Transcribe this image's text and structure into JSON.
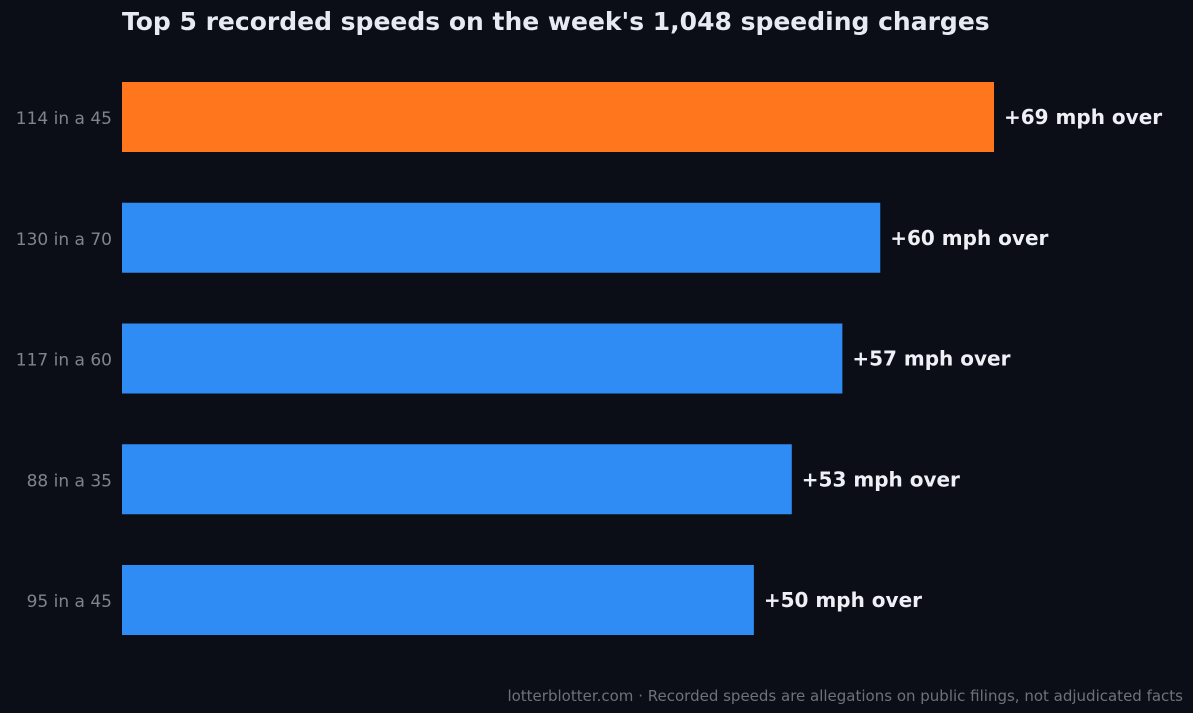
{
  "chart_data": {
    "type": "bar",
    "orientation": "horizontal",
    "title": "Top 5 recorded speeds on the week's 1,048 speeding charges",
    "categories": [
      "114 in a 45",
      "130 in a 70",
      "117 in a 60",
      "88 in a 35",
      "95 in a 45"
    ],
    "values": [
      69,
      60,
      57,
      53,
      50
    ],
    "data_labels": [
      "+69 mph over",
      "+60 mph over",
      "+57 mph over",
      "+53 mph over",
      "+50 mph over"
    ],
    "highlight_index": 0,
    "xlim": [
      0,
      69
    ],
    "grid": false,
    "legend": "none",
    "colors": {
      "highlight": "#ff761d",
      "bar": "#2e8cf4",
      "background": "#0c0e17"
    }
  },
  "footer": {
    "source": "lotterblotter.com",
    "separator": "·",
    "note": "Recorded speeds are allegations on public filings, not adjudicated facts"
  }
}
